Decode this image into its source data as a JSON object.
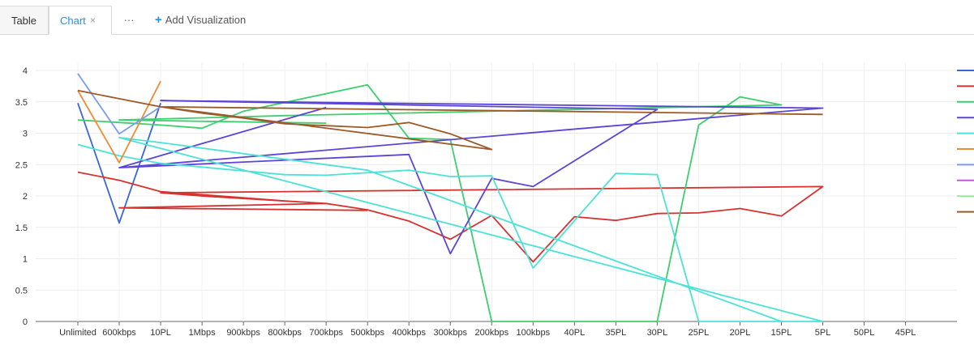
{
  "tabs": {
    "table_label": "Table",
    "chart_label": "Chart",
    "close_glyph": "×",
    "more_glyph": "···",
    "add_label": "Add Visualization"
  },
  "chart_data": {
    "type": "line",
    "categories": [
      "Unlimited",
      "600kbps",
      "10PL",
      "1Mbps",
      "900kbps",
      "800kbps",
      "700kbps",
      "500kbps",
      "400kbps",
      "300kbps",
      "200kbps",
      "100kbps",
      "40PL",
      "35PL",
      "30PL",
      "25PL",
      "20PL",
      "15PL",
      "5PL",
      "50PL",
      "45PL"
    ],
    "yticks": [
      "0",
      "0.5",
      "1",
      "1.5",
      "2",
      "2.5",
      "3",
      "3.5",
      "4"
    ],
    "ylim": [
      0,
      4
    ],
    "legend_position": "right",
    "series": [
      {
        "color": "#3a66d9",
        "x": [
          0,
          1,
          2
        ],
        "values": [
          3.48,
          1.57,
          3.48
        ]
      },
      {
        "color": "#d93030",
        "x": [
          0,
          1,
          2,
          3,
          4,
          5,
          6,
          7,
          8,
          9,
          10,
          11,
          12,
          13,
          14,
          15,
          16,
          17,
          18,
          2,
          3,
          6,
          1,
          7
        ],
        "values": [
          2.38,
          2.25,
          2.07,
          2.02,
          1.97,
          1.92,
          1.88,
          1.78,
          1.6,
          1.31,
          1.69,
          0.95,
          1.67,
          1.61,
          1.72,
          1.73,
          1.8,
          1.68,
          2.15,
          2.05,
          2.0,
          1.88,
          1.81,
          1.77
        ]
      },
      {
        "color": "#3ccf6e",
        "x": [
          0,
          2,
          3,
          4,
          7,
          8,
          9,
          10,
          11,
          12,
          13,
          14,
          15,
          16,
          17,
          5,
          1,
          6
        ],
        "values": [
          3.21,
          3.13,
          3.08,
          3.35,
          3.77,
          2.92,
          2.9,
          0.0,
          0.0,
          0.0,
          0.0,
          0.0,
          3.13,
          3.58,
          3.45,
          3.28,
          3.21,
          3.16
        ]
      },
      {
        "color": "#5b45d6",
        "x": [
          1,
          8,
          9,
          10,
          11,
          14,
          2,
          18,
          1,
          6
        ],
        "values": [
          2.45,
          2.66,
          1.08,
          2.28,
          2.15,
          3.38,
          3.52,
          3.4,
          2.45,
          3.41
        ]
      },
      {
        "color": "#4de2d8",
        "x": [
          0,
          1,
          2,
          5,
          6,
          8,
          9,
          10,
          11,
          13,
          14,
          15,
          18,
          1,
          2,
          7,
          17
        ],
        "values": [
          2.82,
          2.64,
          2.52,
          2.34,
          2.33,
          2.41,
          2.31,
          2.32,
          0.85,
          2.36,
          2.34,
          0.0,
          0.0,
          2.93,
          2.85,
          2.41,
          0.0
        ]
      },
      {
        "color": "#f08a33",
        "x": [
          0,
          1,
          2
        ],
        "values": [
          3.68,
          2.53,
          3.83
        ]
      },
      {
        "color": "#7a9cf0",
        "x": [
          0,
          1,
          2
        ],
        "values": [
          3.95,
          2.99,
          3.42
        ]
      },
      {
        "color": "#c35ad6",
        "x": [],
        "values": []
      },
      {
        "color": "#8ef08e",
        "x": [],
        "values": []
      },
      {
        "color": "#9c5a28",
        "x": [
          0,
          1,
          2,
          3,
          4,
          5,
          6,
          7,
          8,
          9,
          10,
          2,
          18
        ],
        "values": [
          3.68,
          3.55,
          3.42,
          3.32,
          3.24,
          3.15,
          3.12,
          3.09,
          3.17,
          2.99,
          2.74,
          3.42,
          3.3
        ]
      }
    ]
  }
}
